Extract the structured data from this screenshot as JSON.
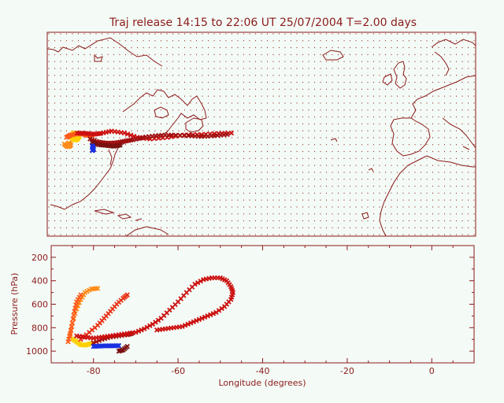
{
  "title": "Traj release 14:15 to 22:06 UT 25/07/2004    T=2.00 days",
  "colors": {
    "frame": "#8b1a1a",
    "background": "#f4fbf6",
    "trajectory_palette": [
      "#ffd000",
      "#ff8c1a",
      "#ff5a1a",
      "#e83015",
      "#cc1010",
      "#a01010",
      "#7a1010",
      "#1a30e0"
    ]
  },
  "chart_data": [
    {
      "type": "scatter",
      "title": "",
      "xlim": [
        -90,
        10
      ],
      "ylim": [
        20,
        72
      ],
      "map": "coastlines",
      "grid": true,
      "legend": "none",
      "series": [
        {
          "values": [
            [
              -84.5,
              45.5
            ],
            [
              -84,
              44.8
            ],
            [
              -83.5,
              44.5
            ],
            [
              -83,
              44.7
            ],
            [
              -82.5,
              45.5
            ],
            [
              -83,
              46.2
            ],
            [
              -84,
              46.3
            ]
          ]
        },
        {
          "values": [
            [
              -86,
              43.5
            ],
            [
              -85.5,
              43
            ],
            [
              -85,
              42.8
            ],
            [
              -84.5,
              43.2
            ],
            [
              -85,
              43.8
            ]
          ]
        },
        {
          "values": [
            [
              -85.5,
              45.2
            ],
            [
              -84.5,
              45.8
            ],
            [
              -83,
              46.1
            ],
            [
              -81.5,
              46
            ],
            [
              -80.5,
              45.7
            ],
            [
              -79.5,
              45.8
            ]
          ]
        },
        {
          "values": [
            [
              -83,
              46.3
            ],
            [
              -81,
              46.2
            ],
            [
              -79,
              46
            ],
            [
              -77.5,
              46.2
            ],
            [
              -75,
              46.8
            ],
            [
              -72,
              46.3
            ],
            [
              -69,
              45.2
            ],
            [
              -66,
              44.8
            ],
            [
              -62,
              45.2
            ],
            [
              -58,
              45.8
            ],
            [
              -54,
              45.9
            ],
            [
              -50,
              46.2
            ],
            [
              -47,
              46.3
            ]
          ]
        },
        {
          "values": [
            [
              -80,
              44.8
            ],
            [
              -78,
              44
            ],
            [
              -76,
              43.7
            ],
            [
              -74,
              43.8
            ],
            [
              -72,
              44.2
            ],
            [
              -70,
              44.6
            ],
            [
              -67,
              45.3
            ],
            [
              -64,
              45.7
            ],
            [
              -61,
              45.8
            ],
            [
              -57,
              45.6
            ],
            [
              -54,
              45.4
            ],
            [
              -51,
              45.6
            ],
            [
              -48,
              45.9
            ]
          ]
        },
        {
          "values": [
            [
              -79.5,
              44
            ],
            [
              -78,
              43.3
            ],
            [
              -76,
              43.1
            ],
            [
              -74.5,
              42.9
            ],
            [
              -73,
              43.2
            ]
          ]
        },
        {
          "values": [
            [
              -79.5,
              43.1
            ],
            [
              -79.3,
              42.6
            ],
            [
              -79.2,
              42.1
            ],
            [
              -79.5,
              41.8
            ]
          ]
        }
      ]
    },
    {
      "type": "scatter",
      "title": "",
      "xlabel": "Longitude  (degrees)",
      "ylabel": "Pressure  (hPa)",
      "xlim": [
        -90,
        10
      ],
      "ylim": [
        1100,
        100
      ],
      "xticks": [
        -80,
        -60,
        -40,
        -20,
        0
      ],
      "yticks": [
        200,
        400,
        600,
        800,
        1000
      ],
      "grid": false,
      "legend": "none",
      "series": [
        {
          "values": [
            [
              -85,
              895
            ],
            [
              -84,
              920
            ],
            [
              -83,
              945
            ],
            [
              -82,
              950
            ],
            [
              -81,
              940
            ],
            [
              -80,
              930
            ]
          ]
        },
        {
          "values": [
            [
              -85.5,
              860
            ],
            [
              -85,
              760
            ],
            [
              -84,
              640
            ],
            [
              -83,
              560
            ],
            [
              -82,
              500
            ],
            [
              -80.5,
              470
            ],
            [
              -79,
              465
            ]
          ]
        },
        {
          "values": [
            [
              -86,
              920
            ],
            [
              -85.5,
              850
            ],
            [
              -85,
              760
            ],
            [
              -84.5,
              660
            ],
            [
              -84,
              580
            ],
            [
              -83,
              520
            ]
          ]
        },
        {
          "values": [
            [
              -83,
              900
            ],
            [
              -81,
              840
            ],
            [
              -79,
              780
            ],
            [
              -77.5,
              720
            ],
            [
              -76,
              660
            ],
            [
              -74.5,
              600
            ],
            [
              -73,
              550
            ],
            [
              -72,
              520
            ]
          ]
        },
        {
          "values": [
            [
              -80,
              930
            ],
            [
              -78,
              900
            ],
            [
              -76,
              880
            ],
            [
              -74,
              870
            ],
            [
              -72,
              860
            ],
            [
              -71,
              850
            ]
          ]
        },
        {
          "values": [
            [
              -84,
              870
            ],
            [
              -82,
              880
            ],
            [
              -80,
              890
            ],
            [
              -78,
              880
            ],
            [
              -76,
              870
            ],
            [
              -74,
              860
            ],
            [
              -72,
              850
            ],
            [
              -70,
              840
            ],
            [
              -68,
              810
            ],
            [
              -66,
              770
            ],
            [
              -64,
              720
            ],
            [
              -62,
              650
            ],
            [
              -60,
              580
            ],
            [
              -58,
              500
            ],
            [
              -56,
              430
            ],
            [
              -54,
              390
            ],
            [
              -52,
              375
            ],
            [
              -50,
              375
            ],
            [
              -48.5,
              400
            ],
            [
              -47.5,
              450
            ],
            [
              -47,
              500
            ],
            [
              -47.5,
              560
            ],
            [
              -49,
              620
            ],
            [
              -51,
              670
            ],
            [
              -53,
              700
            ],
            [
              -55,
              730
            ],
            [
              -57,
              760
            ],
            [
              -59,
              790
            ],
            [
              -61,
              800
            ],
            [
              -63,
              810
            ],
            [
              -65,
              820
            ]
          ]
        },
        {
          "values": [
            [
              -80,
              960
            ],
            [
              -79,
              958
            ],
            [
              -78,
              956
            ],
            [
              -77,
              955
            ],
            [
              -76,
              955
            ],
            [
              -75,
              955
            ],
            [
              -74,
              953
            ]
          ]
        },
        {
          "values": [
            [
              -72,
              960
            ],
            [
              -73,
              990
            ],
            [
              -74,
              1000
            ]
          ]
        }
      ]
    }
  ]
}
